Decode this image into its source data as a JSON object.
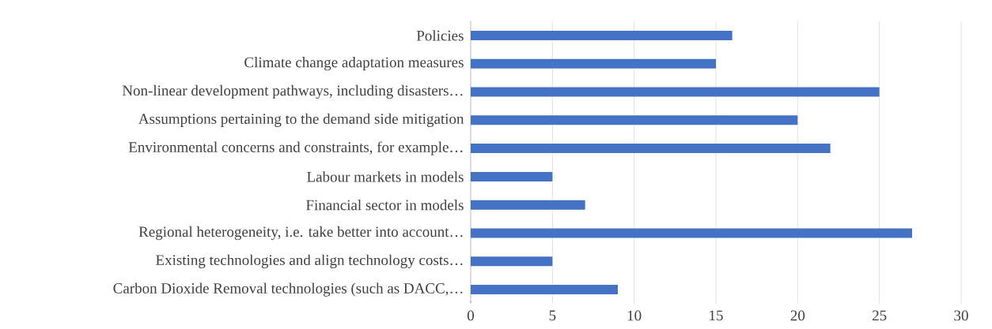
{
  "chart_data": {
    "type": "bar",
    "orientation": "horizontal",
    "categories": [
      "Policies",
      "Climate change adaptation measures",
      "Non-linear development pathways, including disasters…",
      "Assumptions pertaining to the demand side mitigation",
      "Environmental concerns and constraints, for example…",
      "Labour markets in models",
      "Financial sector in models",
      "Regional heterogeneity, i.e. take better into account…",
      "Existing technologies and align technology costs…",
      "Carbon Dioxide Removal technologies (such as DACC,…"
    ],
    "values": [
      16,
      15,
      25,
      20,
      22,
      5,
      7,
      27,
      5,
      9
    ],
    "color": "#4472c4",
    "xlim": [
      0,
      30
    ],
    "xticks": [
      0,
      5,
      10,
      15,
      20,
      25,
      30
    ],
    "grid": "x"
  }
}
